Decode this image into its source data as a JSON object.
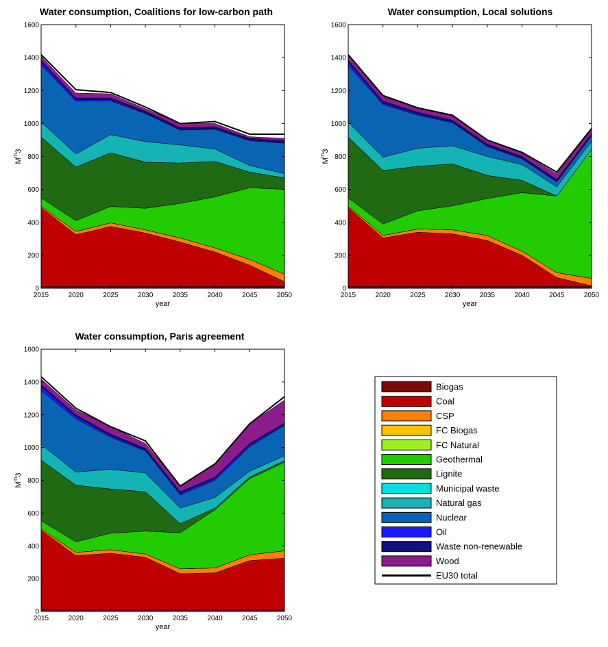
{
  "colors": {
    "Biogas": "#7a0a0a",
    "Coal": "#c00000",
    "CSP": "#ff8000",
    "FC Biogas": "#ffc000",
    "FC Natural": "#a0f020",
    "Geothermal": "#22cc00",
    "Lignite": "#1f6a12",
    "Municipal waste": "#00e0e0",
    "Natural gas": "#14b4b4",
    "Nuclear": "#0a64b4",
    "Oil": "#1a1aff",
    "Waste non-renewable": "#101080",
    "Wood": "#8c1c8c",
    "EU30 total": "#000000"
  },
  "legend": [
    "Biogas",
    "Coal",
    "CSP",
    "FC Biogas",
    "FC Natural",
    "Geothermal",
    "Lignite",
    "Municipal waste",
    "Natural gas",
    "Nuclear",
    "Oil",
    "Waste non-renewable",
    "Wood",
    "EU30 total"
  ],
  "chart_data": [
    {
      "type": "area",
      "title": "Water consumption, Coalitions for low-carbon path",
      "xlabel": "year",
      "ylabel": "M m3",
      "ylabel_base": "M",
      "ylabel_sup": "m",
      "ylabel_tail": "3",
      "x": [
        2015,
        2020,
        2025,
        2030,
        2035,
        2040,
        2045,
        2050
      ],
      "ylim": [
        0,
        1600
      ],
      "yticks": [
        0,
        200,
        400,
        600,
        800,
        1000,
        1200,
        1400,
        1600
      ],
      "series": [
        {
          "name": "Biogas",
          "values": [
            10,
            10,
            10,
            10,
            10,
            10,
            10,
            10
          ]
        },
        {
          "name": "Coal",
          "values": [
            480,
            315,
            365,
            325,
            270,
            210,
            130,
            30
          ]
        },
        {
          "name": "CSP",
          "values": [
            8,
            20,
            22,
            20,
            25,
            25,
            35,
            45
          ]
        },
        {
          "name": "FC Biogas",
          "values": [
            0,
            0,
            0,
            0,
            0,
            0,
            0,
            0
          ]
        },
        {
          "name": "FC Natural",
          "values": [
            0,
            0,
            0,
            0,
            0,
            0,
            0,
            0
          ]
        },
        {
          "name": "Geothermal",
          "values": [
            50,
            65,
            100,
            130,
            210,
            310,
            435,
            515
          ]
        },
        {
          "name": "Lignite",
          "values": [
            370,
            325,
            325,
            280,
            245,
            215,
            95,
            70
          ]
        },
        {
          "name": "Municipal waste",
          "values": [
            0,
            0,
            0,
            0,
            0,
            0,
            0,
            0
          ]
        },
        {
          "name": "Natural gas",
          "values": [
            90,
            80,
            110,
            125,
            110,
            75,
            40,
            25
          ]
        },
        {
          "name": "Nuclear",
          "values": [
            345,
            320,
            205,
            170,
            90,
            120,
            150,
            185
          ]
        },
        {
          "name": "Oil",
          "values": [
            20,
            10,
            8,
            5,
            5,
            5,
            5,
            5
          ]
        },
        {
          "name": "Waste non-renewable",
          "values": [
            10,
            10,
            10,
            10,
            10,
            10,
            10,
            10
          ]
        },
        {
          "name": "Wood",
          "values": [
            25,
            30,
            25,
            15,
            25,
            20,
            10,
            15
          ]
        }
      ],
      "total": [
        1418,
        1205,
        1188,
        1100,
        1000,
        1012,
        935,
        935
      ]
    },
    {
      "type": "area",
      "title": "Water consumption, Local solutions",
      "xlabel": "year",
      "ylabel": "M m3",
      "ylabel_base": "M",
      "ylabel_sup": "m",
      "ylabel_tail": "3",
      "x": [
        2015,
        2020,
        2025,
        2030,
        2035,
        2040,
        2045,
        2050
      ],
      "ylim": [
        0,
        1600
      ],
      "yticks": [
        0,
        200,
        400,
        600,
        800,
        1000,
        1200,
        1400,
        1600
      ],
      "series": [
        {
          "name": "Biogas",
          "values": [
            10,
            10,
            10,
            10,
            10,
            10,
            10,
            10
          ]
        },
        {
          "name": "Coal",
          "values": [
            480,
            295,
            330,
            320,
            280,
            190,
            55,
            5
          ]
        },
        {
          "name": "CSP",
          "values": [
            8,
            15,
            20,
            25,
            30,
            25,
            30,
            45
          ]
        },
        {
          "name": "FC Biogas",
          "values": [
            0,
            0,
            0,
            0,
            0,
            0,
            0,
            0
          ]
        },
        {
          "name": "FC Natural",
          "values": [
            0,
            0,
            0,
            0,
            0,
            0,
            0,
            0
          ]
        },
        {
          "name": "Geothermal",
          "values": [
            50,
            70,
            110,
            145,
            225,
            355,
            465,
            785
          ]
        },
        {
          "name": "Lignite",
          "values": [
            370,
            325,
            270,
            255,
            140,
            75,
            0,
            0
          ]
        },
        {
          "name": "Municipal waste",
          "values": [
            0,
            0,
            0,
            0,
            0,
            0,
            0,
            0
          ]
        },
        {
          "name": "Natural gas",
          "values": [
            90,
            80,
            110,
            110,
            115,
            95,
            55,
            45
          ]
        },
        {
          "name": "Nuclear",
          "values": [
            345,
            320,
            200,
            140,
            60,
            35,
            30,
            35
          ]
        },
        {
          "name": "Oil",
          "values": [
            20,
            10,
            8,
            5,
            5,
            5,
            5,
            5
          ]
        },
        {
          "name": "Waste non-renewable",
          "values": [
            10,
            10,
            10,
            10,
            10,
            10,
            10,
            10
          ]
        },
        {
          "name": "Wood",
          "values": [
            25,
            28,
            30,
            30,
            25,
            20,
            35,
            25
          ]
        }
      ],
      "total": [
        1418,
        1170,
        1095,
        1050,
        900,
        825,
        705,
        970
      ]
    },
    {
      "type": "area",
      "title": "Water consumption, Paris agreement",
      "xlabel": "year",
      "ylabel": "M m3",
      "ylabel_base": "M",
      "ylabel_sup": "m",
      "ylabel_tail": "3",
      "x": [
        2015,
        2020,
        2025,
        2030,
        2035,
        2040,
        2045,
        2050
      ],
      "ylim": [
        0,
        1600
      ],
      "yticks": [
        0,
        200,
        400,
        600,
        800,
        1000,
        1200,
        1400,
        1600
      ],
      "series": [
        {
          "name": "Biogas",
          "values": [
            10,
            10,
            10,
            10,
            10,
            10,
            10,
            10
          ]
        },
        {
          "name": "Coal",
          "values": [
            485,
            330,
            345,
            320,
            220,
            225,
            300,
            315
          ]
        },
        {
          "name": "CSP",
          "values": [
            8,
            20,
            22,
            20,
            30,
            30,
            35,
            45
          ]
        },
        {
          "name": "FC Biogas",
          "values": [
            0,
            0,
            0,
            0,
            0,
            0,
            0,
            0
          ]
        },
        {
          "name": "FC Natural",
          "values": [
            0,
            0,
            0,
            0,
            0,
            0,
            0,
            0
          ]
        },
        {
          "name": "Geothermal",
          "values": [
            50,
            65,
            100,
            140,
            220,
            355,
            465,
            540
          ]
        },
        {
          "name": "Lignite",
          "values": [
            370,
            345,
            270,
            240,
            55,
            10,
            10,
            10
          ]
        },
        {
          "name": "Municipal waste",
          "values": [
            0,
            0,
            0,
            0,
            0,
            0,
            0,
            0
          ]
        },
        {
          "name": "Natural gas",
          "values": [
            95,
            80,
            120,
            115,
            95,
            65,
            35,
            30
          ]
        },
        {
          "name": "Nuclear",
          "values": [
            330,
            325,
            195,
            135,
            80,
            105,
            150,
            185
          ]
        },
        {
          "name": "Oil",
          "values": [
            25,
            15,
            10,
            5,
            10,
            10,
            10,
            5
          ]
        },
        {
          "name": "Waste non-renewable",
          "values": [
            10,
            10,
            10,
            10,
            10,
            10,
            10,
            10
          ]
        },
        {
          "name": "Wood",
          "values": [
            35,
            30,
            45,
            30,
            35,
            80,
            120,
            140
          ]
        }
      ],
      "total": [
        1432,
        1240,
        1127,
        1040,
        765,
        900,
        1145,
        1310
      ]
    }
  ]
}
